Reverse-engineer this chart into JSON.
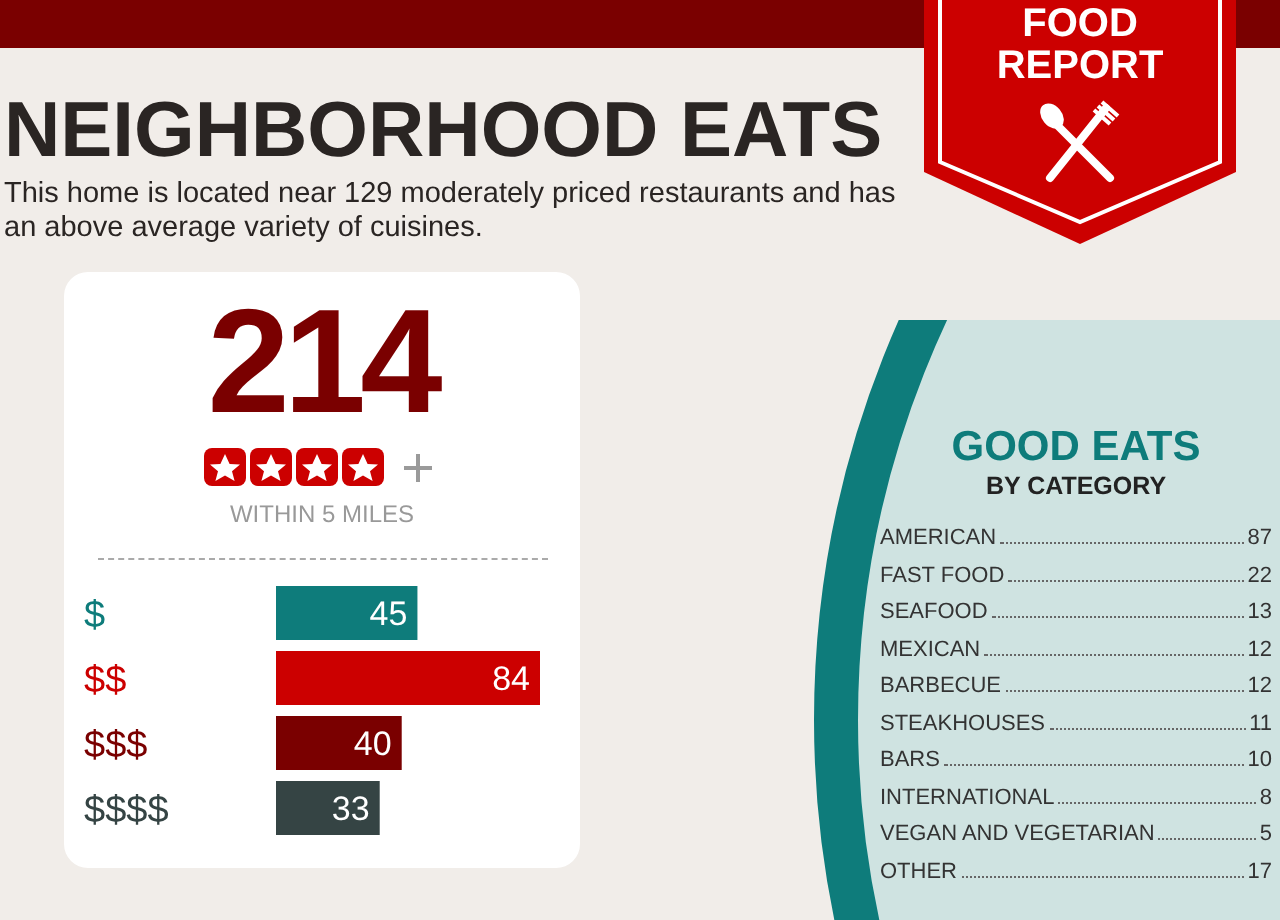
{
  "chart_data": [
    {
      "type": "bar",
      "orientation": "horizontal",
      "title": "NEIGHBORHOOD EATS",
      "subtitle": "This home is located near 129 moderately priced restaurants and has an above average variety of cuisines.",
      "annotations": [
        "FOOD REPORT",
        "214",
        "WITHIN 5 MILES"
      ],
      "categories": [
        "$",
        "$$",
        "$$$",
        "$$$$"
      ],
      "values": [
        45,
        84,
        40,
        33
      ],
      "colors": [
        "#0e7c7b",
        "#cc0000",
        "#7a0000",
        "#354444"
      ],
      "data_labels": true
    },
    {
      "type": "other",
      "title": "GOOD EATS",
      "subtitle": "BY CATEGORY",
      "categories": [
        "AMERICAN",
        "FAST FOOD",
        "SEAFOOD",
        "MEXICAN",
        "BARBECUE",
        "STEAKHOUSES",
        "BARS",
        "INTERNATIONAL",
        "VEGAN AND VEGETARIAN",
        "OTHER"
      ],
      "values": [
        87,
        22,
        13,
        12,
        12,
        11,
        10,
        8,
        5,
        17
      ],
      "data_labels": true
    }
  ]
}
